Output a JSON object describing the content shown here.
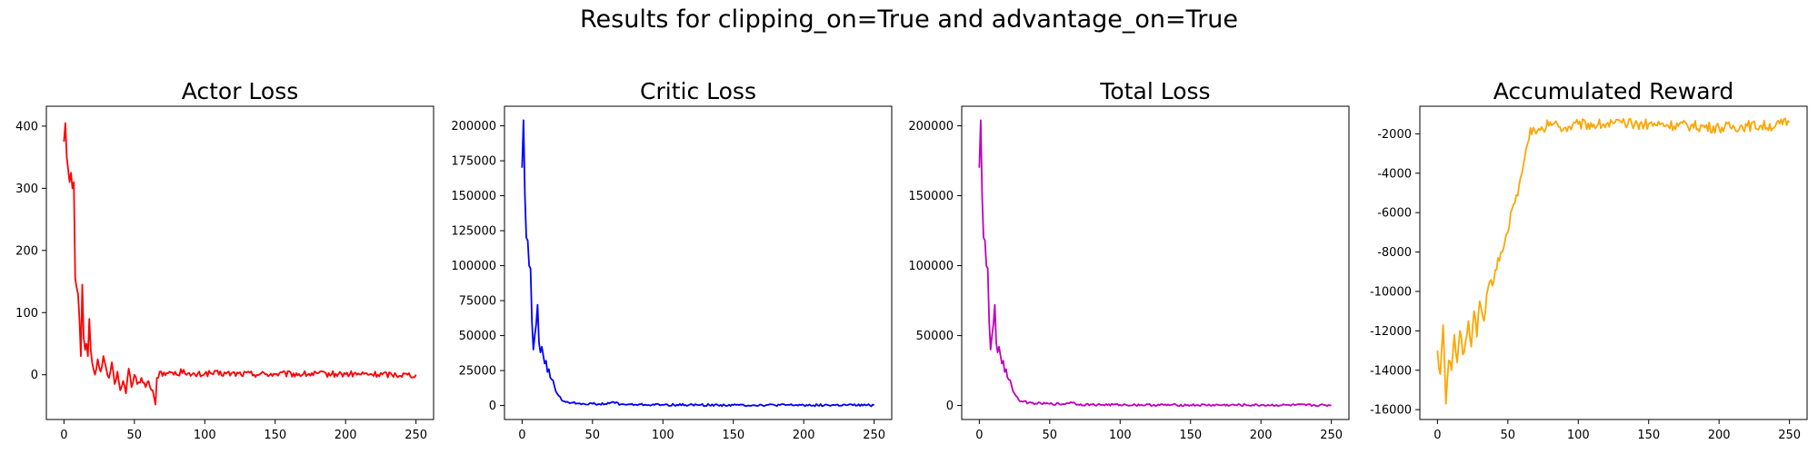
{
  "figure": {
    "suptitle": "Results for clipping_on=True and advantage_on=True"
  },
  "chart_data": [
    {
      "type": "line",
      "title": "Actor Loss",
      "color": "#ff0000",
      "xlim": [
        -12.5,
        262.5
      ],
      "ylim": [
        -72,
        432
      ],
      "xticks": [
        0,
        50,
        100,
        150,
        200,
        250
      ],
      "yticks": [
        0,
        100,
        200,
        300,
        400
      ],
      "anchors": [
        [
          0,
          375
        ],
        [
          1,
          405
        ],
        [
          2,
          350
        ],
        [
          3,
          330
        ],
        [
          4,
          310
        ],
        [
          5,
          325
        ],
        [
          6,
          300
        ],
        [
          7,
          310
        ],
        [
          8,
          155
        ],
        [
          9,
          140
        ],
        [
          10,
          130
        ],
        [
          11,
          90
        ],
        [
          12,
          30
        ],
        [
          13,
          145
        ],
        [
          14,
          60
        ],
        [
          15,
          40
        ],
        [
          16,
          50
        ],
        [
          17,
          30
        ],
        [
          18,
          90
        ],
        [
          19,
          40
        ],
        [
          20,
          20
        ],
        [
          22,
          0
        ],
        [
          24,
          25
        ],
        [
          26,
          5
        ],
        [
          28,
          30
        ],
        [
          30,
          10
        ],
        [
          32,
          -5
        ],
        [
          34,
          20
        ],
        [
          36,
          -15
        ],
        [
          38,
          5
        ],
        [
          40,
          -25
        ],
        [
          42,
          -10
        ],
        [
          44,
          -30
        ],
        [
          46,
          10
        ],
        [
          48,
          -20
        ],
        [
          50,
          0
        ],
        [
          52,
          -15
        ],
        [
          55,
          -5
        ],
        [
          58,
          -20
        ],
        [
          60,
          -10
        ],
        [
          63,
          -25
        ],
        [
          65,
          -48
        ],
        [
          66,
          -5
        ],
        [
          68,
          5
        ],
        [
          70,
          -2
        ],
        [
          75,
          5
        ],
        [
          80,
          0
        ],
        [
          85,
          8
        ],
        [
          90,
          -2
        ],
        [
          100,
          2
        ],
        [
          150,
          1
        ],
        [
          200,
          1
        ],
        [
          250,
          0
        ]
      ],
      "noise": 5
    },
    {
      "type": "line",
      "title": "Critic Loss",
      "color": "#0000ff",
      "xlim": [
        -12.5,
        262.5
      ],
      "ylim": [
        -10000,
        214000
      ],
      "xticks": [
        0,
        50,
        100,
        150,
        200,
        250
      ],
      "yticks": [
        0,
        25000,
        50000,
        75000,
        100000,
        125000,
        150000,
        175000,
        200000
      ],
      "anchors": [
        [
          0,
          170000
        ],
        [
          1,
          204000
        ],
        [
          2,
          150000
        ],
        [
          3,
          120000
        ],
        [
          4,
          118000
        ],
        [
          5,
          100000
        ],
        [
          6,
          98000
        ],
        [
          7,
          60000
        ],
        [
          8,
          40000
        ],
        [
          9,
          50000
        ],
        [
          10,
          58000
        ],
        [
          11,
          72000
        ],
        [
          12,
          45000
        ],
        [
          13,
          38000
        ],
        [
          14,
          42000
        ],
        [
          15,
          36000
        ],
        [
          16,
          30000
        ],
        [
          17,
          32000
        ],
        [
          18,
          24000
        ],
        [
          19,
          26000
        ],
        [
          20,
          20000
        ],
        [
          22,
          18000
        ],
        [
          24,
          10000
        ],
        [
          26,
          7000
        ],
        [
          28,
          4000
        ],
        [
          30,
          3000
        ],
        [
          35,
          2000
        ],
        [
          40,
          1500
        ],
        [
          50,
          1200
        ],
        [
          60,
          1000
        ],
        [
          65,
          2500
        ],
        [
          70,
          800
        ],
        [
          80,
          600
        ],
        [
          100,
          500
        ],
        [
          150,
          300
        ],
        [
          200,
          300
        ],
        [
          250,
          200
        ]
      ],
      "noise": 800
    },
    {
      "type": "line",
      "title": "Total Loss",
      "color": "#bf00bf",
      "xlim": [
        -12.5,
        262.5
      ],
      "ylim": [
        -10000,
        214000
      ],
      "xticks": [
        0,
        50,
        100,
        150,
        200,
        250
      ],
      "yticks": [
        0,
        50000,
        100000,
        150000,
        200000
      ],
      "anchors": [
        [
          0,
          170000
        ],
        [
          1,
          204000
        ],
        [
          2,
          150000
        ],
        [
          3,
          120000
        ],
        [
          4,
          118000
        ],
        [
          5,
          100000
        ],
        [
          6,
          98000
        ],
        [
          7,
          60000
        ],
        [
          8,
          40000
        ],
        [
          9,
          50000
        ],
        [
          10,
          58000
        ],
        [
          11,
          72000
        ],
        [
          12,
          45000
        ],
        [
          13,
          38000
        ],
        [
          14,
          42000
        ],
        [
          15,
          36000
        ],
        [
          16,
          30000
        ],
        [
          17,
          32000
        ],
        [
          18,
          24000
        ],
        [
          19,
          26000
        ],
        [
          20,
          20000
        ],
        [
          22,
          18000
        ],
        [
          24,
          10000
        ],
        [
          26,
          7000
        ],
        [
          28,
          4000
        ],
        [
          30,
          3000
        ],
        [
          35,
          2000
        ],
        [
          40,
          1500
        ],
        [
          50,
          1200
        ],
        [
          60,
          1000
        ],
        [
          65,
          2500
        ],
        [
          70,
          800
        ],
        [
          80,
          600
        ],
        [
          100,
          500
        ],
        [
          150,
          300
        ],
        [
          200,
          300
        ],
        [
          250,
          200
        ]
      ],
      "noise": 800
    },
    {
      "type": "line",
      "title": "Accumulated Reward",
      "color": "#ffa500",
      "xlim": [
        -12.5,
        262.5
      ],
      "ylim": [
        -16500,
        -600
      ],
      "xticks": [
        0,
        50,
        100,
        150,
        200,
        250
      ],
      "yticks": [
        -16000,
        -14000,
        -12000,
        -10000,
        -8000,
        -6000,
        -4000,
        -2000
      ],
      "anchors": [
        [
          0,
          -13000
        ],
        [
          2,
          -14200
        ],
        [
          4,
          -11700
        ],
        [
          6,
          -15700
        ],
        [
          8,
          -13500
        ],
        [
          10,
          -14000
        ],
        [
          12,
          -12200
        ],
        [
          14,
          -13600
        ],
        [
          16,
          -12000
        ],
        [
          18,
          -13200
        ],
        [
          20,
          -12500
        ],
        [
          22,
          -11500
        ],
        [
          24,
          -12800
        ],
        [
          26,
          -11000
        ],
        [
          28,
          -12300
        ],
        [
          30,
          -10500
        ],
        [
          33,
          -11500
        ],
        [
          36,
          -9800
        ],
        [
          40,
          -9500
        ],
        [
          43,
          -8300
        ],
        [
          46,
          -8000
        ],
        [
          50,
          -7000
        ],
        [
          52,
          -6000
        ],
        [
          55,
          -5500
        ],
        [
          58,
          -4600
        ],
        [
          60,
          -4000
        ],
        [
          62,
          -3200
        ],
        [
          64,
          -2500
        ],
        [
          66,
          -1700
        ],
        [
          70,
          -2000
        ],
        [
          75,
          -1800
        ],
        [
          80,
          -1400
        ],
        [
          90,
          -1700
        ],
        [
          100,
          -1500
        ],
        [
          120,
          -1500
        ],
        [
          150,
          -1500
        ],
        [
          180,
          -1600
        ],
        [
          200,
          -1700
        ],
        [
          220,
          -1600
        ],
        [
          240,
          -1600
        ],
        [
          250,
          -1400
        ]
      ],
      "noise": 280
    }
  ]
}
